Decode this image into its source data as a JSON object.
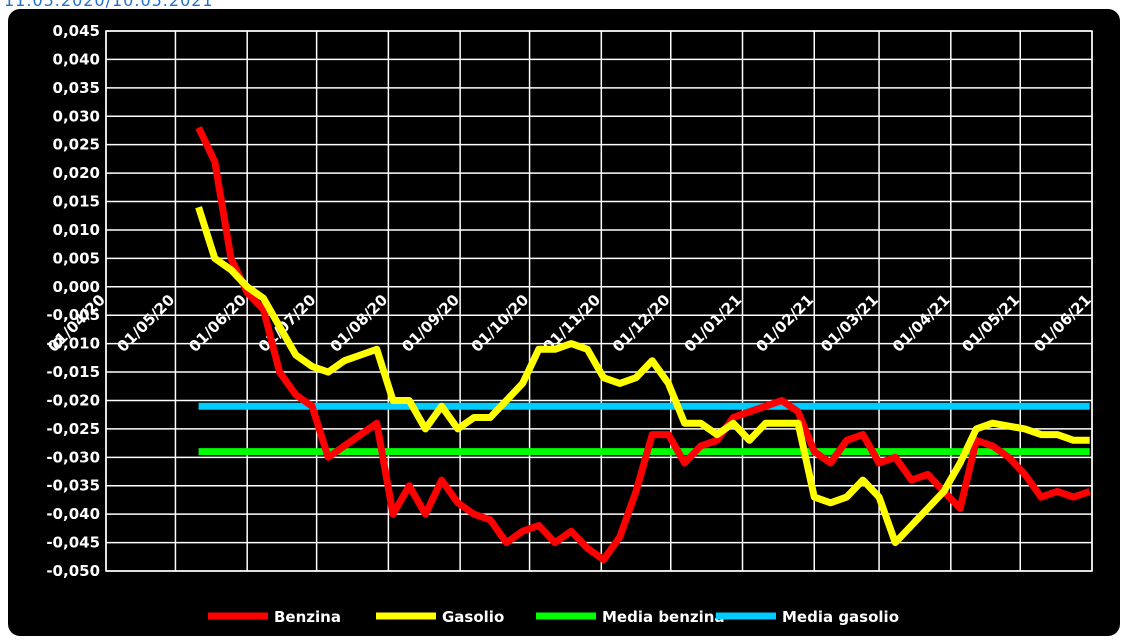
{
  "header": {
    "date_range": "11.05.2020/10.05.2021"
  },
  "chart_data": {
    "type": "line",
    "title": "",
    "xlabel": "",
    "ylabel": "",
    "grid": true,
    "legend_position": "bottom",
    "ylim": [
      -0.05,
      0.045
    ],
    "y_ticks": [
      "0,045",
      "0,040",
      "0,035",
      "0,030",
      "0,025",
      "0,020",
      "0,015",
      "0,010",
      "0,005",
      "0,000",
      "-0,005",
      "-0,010",
      "-0,015",
      "-0,020",
      "-0,025",
      "-0,030",
      "-0,035",
      "-0,040",
      "-0,045",
      "-0,050"
    ],
    "x_ticks": [
      "01/04/20",
      "01/05/20",
      "01/06/20",
      "01/07/20",
      "01/08/20",
      "01/09/20",
      "01/10/20",
      "01/11/20",
      "01/12/20",
      "01/01/21",
      "01/02/21",
      "01/03/21",
      "01/04/21",
      "01/05/21",
      "01/06/21"
    ],
    "x_tick_dates": [
      "2020-04-01",
      "2020-05-01",
      "2020-06-01",
      "2020-07-01",
      "2020-08-01",
      "2020-09-01",
      "2020-10-01",
      "2020-11-01",
      "2020-12-01",
      "2021-01-01",
      "2021-02-01",
      "2021-03-01",
      "2021-04-01",
      "2021-05-01",
      "2021-06-01"
    ],
    "xlim": [
      "2020-04-01",
      "2021-06-01"
    ],
    "series": [
      {
        "name": "Benzina",
        "color": "#ff0000",
        "points": [
          [
            "2020-05-11",
            0.028
          ],
          [
            "2020-05-18",
            0.022
          ],
          [
            "2020-05-25",
            0.005
          ],
          [
            "2020-06-01",
            -0.001
          ],
          [
            "2020-06-08",
            -0.004
          ],
          [
            "2020-06-15",
            -0.015
          ],
          [
            "2020-06-22",
            -0.019
          ],
          [
            "2020-06-29",
            -0.021
          ],
          [
            "2020-07-06",
            -0.03
          ],
          [
            "2020-07-13",
            -0.028
          ],
          [
            "2020-07-20",
            -0.026
          ],
          [
            "2020-07-27",
            -0.024
          ],
          [
            "2020-08-03",
            -0.04
          ],
          [
            "2020-08-10",
            -0.035
          ],
          [
            "2020-08-17",
            -0.04
          ],
          [
            "2020-08-24",
            -0.034
          ],
          [
            "2020-08-31",
            -0.038
          ],
          [
            "2020-09-07",
            -0.04
          ],
          [
            "2020-09-14",
            -0.041
          ],
          [
            "2020-09-21",
            -0.045
          ],
          [
            "2020-09-28",
            -0.043
          ],
          [
            "2020-10-05",
            -0.042
          ],
          [
            "2020-10-12",
            -0.045
          ],
          [
            "2020-10-19",
            -0.043
          ],
          [
            "2020-10-26",
            -0.046
          ],
          [
            "2020-11-02",
            -0.048
          ],
          [
            "2020-11-09",
            -0.044
          ],
          [
            "2020-11-16",
            -0.036
          ],
          [
            "2020-11-23",
            -0.026
          ],
          [
            "2020-11-30",
            -0.026
          ],
          [
            "2020-12-07",
            -0.031
          ],
          [
            "2020-12-14",
            -0.028
          ],
          [
            "2020-12-21",
            -0.027
          ],
          [
            "2020-12-28",
            -0.023
          ],
          [
            "2021-01-04",
            -0.022
          ],
          [
            "2021-01-11",
            -0.021
          ],
          [
            "2021-01-18",
            -0.02
          ],
          [
            "2021-01-25",
            -0.022
          ],
          [
            "2021-02-01",
            -0.029
          ],
          [
            "2021-02-08",
            -0.031
          ],
          [
            "2021-02-15",
            -0.027
          ],
          [
            "2021-02-22",
            -0.026
          ],
          [
            "2021-03-01",
            -0.031
          ],
          [
            "2021-03-08",
            -0.03
          ],
          [
            "2021-03-15",
            -0.034
          ],
          [
            "2021-03-22",
            -0.033
          ],
          [
            "2021-03-29",
            -0.036
          ],
          [
            "2021-04-05",
            -0.039
          ],
          [
            "2021-04-12",
            -0.027
          ],
          [
            "2021-04-19",
            -0.028
          ],
          [
            "2021-04-26",
            -0.03
          ],
          [
            "2021-05-03",
            -0.033
          ],
          [
            "2021-05-10",
            -0.037
          ],
          [
            "2021-05-17",
            -0.036
          ],
          [
            "2021-05-24",
            -0.037
          ],
          [
            "2021-05-31",
            -0.036
          ]
        ]
      },
      {
        "name": "Gasolio",
        "color": "#ffff00",
        "points": [
          [
            "2020-05-11",
            0.014
          ],
          [
            "2020-05-18",
            0.005
          ],
          [
            "2020-05-25",
            0.003
          ],
          [
            "2020-06-01",
            0.0
          ],
          [
            "2020-06-08",
            -0.002
          ],
          [
            "2020-06-15",
            -0.007
          ],
          [
            "2020-06-22",
            -0.012
          ],
          [
            "2020-06-29",
            -0.014
          ],
          [
            "2020-07-06",
            -0.015
          ],
          [
            "2020-07-13",
            -0.013
          ],
          [
            "2020-07-20",
            -0.012
          ],
          [
            "2020-07-27",
            -0.011
          ],
          [
            "2020-08-03",
            -0.02
          ],
          [
            "2020-08-10",
            -0.02
          ],
          [
            "2020-08-17",
            -0.025
          ],
          [
            "2020-08-24",
            -0.021
          ],
          [
            "2020-08-31",
            -0.025
          ],
          [
            "2020-09-07",
            -0.023
          ],
          [
            "2020-09-14",
            -0.023
          ],
          [
            "2020-09-21",
            -0.02
          ],
          [
            "2020-09-28",
            -0.017
          ],
          [
            "2020-10-05",
            -0.011
          ],
          [
            "2020-10-12",
            -0.011
          ],
          [
            "2020-10-19",
            -0.01
          ],
          [
            "2020-10-26",
            -0.011
          ],
          [
            "2020-11-02",
            -0.016
          ],
          [
            "2020-11-09",
            -0.017
          ],
          [
            "2020-11-16",
            -0.016
          ],
          [
            "2020-11-23",
            -0.013
          ],
          [
            "2020-11-30",
            -0.017
          ],
          [
            "2020-12-07",
            -0.024
          ],
          [
            "2020-12-14",
            -0.024
          ],
          [
            "2020-12-21",
            -0.026
          ],
          [
            "2020-12-28",
            -0.024
          ],
          [
            "2021-01-04",
            -0.027
          ],
          [
            "2021-01-11",
            -0.024
          ],
          [
            "2021-01-18",
            -0.024
          ],
          [
            "2021-01-25",
            -0.024
          ],
          [
            "2021-02-01",
            -0.037
          ],
          [
            "2021-02-08",
            -0.038
          ],
          [
            "2021-02-15",
            -0.037
          ],
          [
            "2021-02-22",
            -0.034
          ],
          [
            "2021-03-01",
            -0.037
          ],
          [
            "2021-03-08",
            -0.045
          ],
          [
            "2021-03-15",
            -0.042
          ],
          [
            "2021-03-22",
            -0.039
          ],
          [
            "2021-03-29",
            -0.036
          ],
          [
            "2021-04-05",
            -0.031
          ],
          [
            "2021-04-12",
            -0.025
          ],
          [
            "2021-04-19",
            -0.024
          ],
          [
            "2021-04-26",
            -0.0245
          ],
          [
            "2021-05-03",
            -0.025
          ],
          [
            "2021-05-10",
            -0.026
          ],
          [
            "2021-05-17",
            -0.026
          ],
          [
            "2021-05-24",
            -0.027
          ],
          [
            "2021-05-31",
            -0.027
          ]
        ]
      },
      {
        "name": "Media benzina",
        "color": "#00ff00",
        "points": [
          [
            "2020-05-11",
            -0.029
          ],
          [
            "2021-05-31",
            -0.029
          ]
        ]
      },
      {
        "name": "Media gasolio",
        "color": "#00ccff",
        "points": [
          [
            "2020-05-11",
            -0.021
          ],
          [
            "2021-05-31",
            -0.021
          ]
        ]
      }
    ]
  }
}
